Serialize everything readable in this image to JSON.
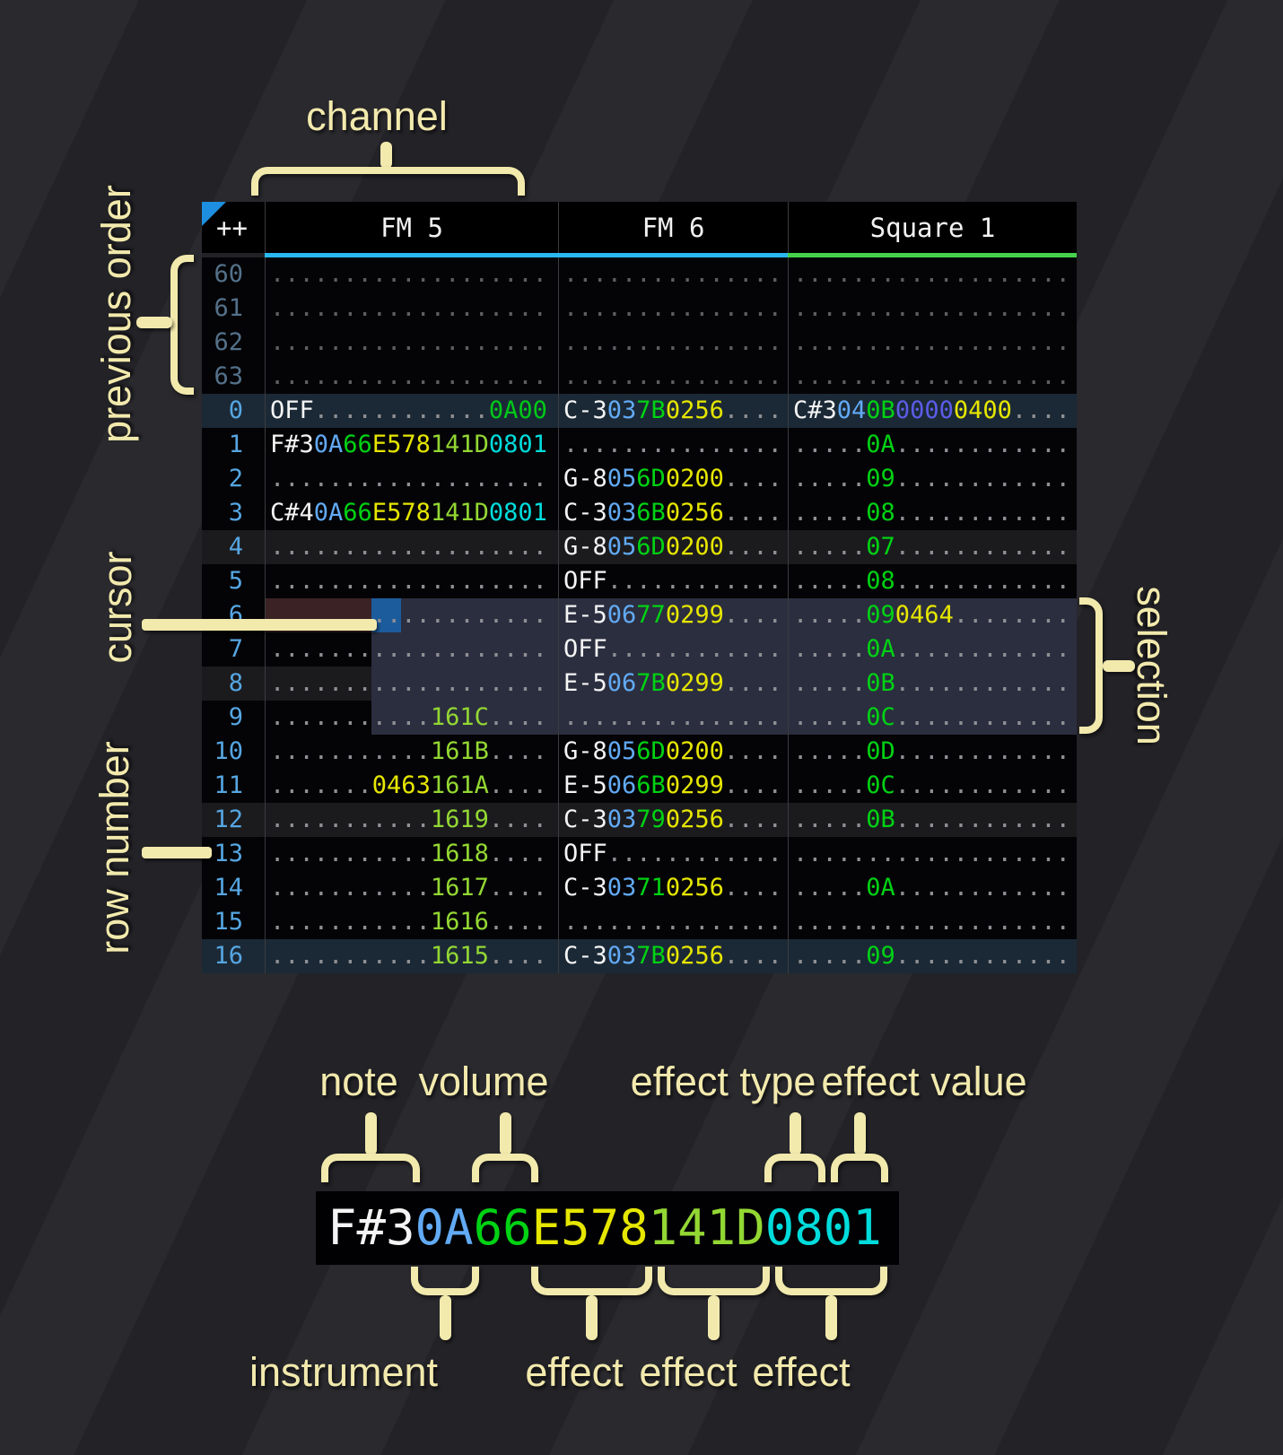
{
  "annotations": {
    "channel": "channel",
    "previous_order": "previous order",
    "cursor": "cursor",
    "row_number": "row number",
    "selection": "selection",
    "note": "note",
    "volume": "volume",
    "effect_type": "effect type",
    "effect_value": "effect value",
    "instrument": "instrument",
    "effect1": "effect",
    "effect2": "effect",
    "effect3": "effect"
  },
  "tracker": {
    "corner": "++",
    "channels": [
      {
        "name": "FM 5",
        "bar_color": "#2ab8f2"
      },
      {
        "name": "FM 6",
        "bar_color": "#2ab8f2"
      },
      {
        "name": "Square 1",
        "bar_color": "#46d14c"
      }
    ],
    "rows": [
      {
        "n": "60",
        "prev": true,
        "hl": 0,
        "c": [
          [
            [
              "...................",
              "d"
            ]
          ],
          [
            [
              "...............",
              "d"
            ]
          ],
          [
            [
              "...................",
              "d"
            ]
          ]
        ]
      },
      {
        "n": "61",
        "prev": true,
        "hl": 0,
        "c": [
          [
            [
              "...................",
              "d"
            ]
          ],
          [
            [
              "...............",
              "d"
            ]
          ],
          [
            [
              "...................",
              "d"
            ]
          ]
        ]
      },
      {
        "n": "62",
        "prev": true,
        "hl": 0,
        "c": [
          [
            [
              "...................",
              "d"
            ]
          ],
          [
            [
              "...............",
              "d"
            ]
          ],
          [
            [
              "...................",
              "d"
            ]
          ]
        ]
      },
      {
        "n": "63",
        "prev": true,
        "hl": 0,
        "c": [
          [
            [
              "...................",
              "d"
            ]
          ],
          [
            [
              "...............",
              "d"
            ]
          ],
          [
            [
              "...................",
              "d"
            ]
          ]
        ]
      },
      {
        "n": "0",
        "prev": false,
        "hl": 2,
        "c": [
          [
            [
              "OFF",
              "n"
            ],
            [
              "............",
              "d"
            ],
            [
              "0A00",
              "g"
            ]
          ],
          [
            [
              "C-3",
              "n"
            ],
            [
              "03",
              "i"
            ],
            [
              "7B",
              "v"
            ],
            [
              "0256",
              "y"
            ],
            [
              "....",
              "d"
            ]
          ],
          [
            [
              "C#3",
              "n"
            ],
            [
              "04",
              "i"
            ],
            [
              "0B",
              "v"
            ],
            [
              "0000",
              "p"
            ],
            [
              "0400",
              "y"
            ],
            [
              "....",
              "d"
            ]
          ]
        ]
      },
      {
        "n": "1",
        "prev": false,
        "hl": 0,
        "c": [
          [
            [
              "F#3",
              "n"
            ],
            [
              "0A",
              "i"
            ],
            [
              "66",
              "v"
            ],
            [
              "E578",
              "y"
            ],
            [
              "141D",
              "l"
            ],
            [
              "0801",
              "c"
            ]
          ],
          [
            [
              "...............",
              "d"
            ]
          ],
          [
            [
              ".....",
              "d"
            ],
            [
              "0A",
              "v"
            ],
            [
              "............",
              "d"
            ]
          ]
        ]
      },
      {
        "n": "2",
        "prev": false,
        "hl": 0,
        "c": [
          [
            [
              "...................",
              "d"
            ]
          ],
          [
            [
              "G-8",
              "n"
            ],
            [
              "05",
              "i"
            ],
            [
              "6D",
              "v"
            ],
            [
              "0200",
              "y"
            ],
            [
              "....",
              "d"
            ]
          ],
          [
            [
              ".....",
              "d"
            ],
            [
              "09",
              "v"
            ],
            [
              "............",
              "d"
            ]
          ]
        ]
      },
      {
        "n": "3",
        "prev": false,
        "hl": 0,
        "c": [
          [
            [
              "C#4",
              "n"
            ],
            [
              "0A",
              "i"
            ],
            [
              "66",
              "v"
            ],
            [
              "E578",
              "y"
            ],
            [
              "141D",
              "l"
            ],
            [
              "0801",
              "c"
            ]
          ],
          [
            [
              "C-3",
              "n"
            ],
            [
              "03",
              "i"
            ],
            [
              "6B",
              "v"
            ],
            [
              "0256",
              "y"
            ],
            [
              "....",
              "d"
            ]
          ],
          [
            [
              ".....",
              "d"
            ],
            [
              "08",
              "v"
            ],
            [
              "............",
              "d"
            ]
          ]
        ]
      },
      {
        "n": "4",
        "prev": false,
        "hl": 1,
        "c": [
          [
            [
              "...................",
              "d"
            ]
          ],
          [
            [
              "G-8",
              "n"
            ],
            [
              "05",
              "i"
            ],
            [
              "6D",
              "v"
            ],
            [
              "0200",
              "y"
            ],
            [
              "....",
              "d"
            ]
          ],
          [
            [
              ".....",
              "d"
            ],
            [
              "07",
              "v"
            ],
            [
              "............",
              "d"
            ]
          ]
        ]
      },
      {
        "n": "5",
        "prev": false,
        "hl": 0,
        "c": [
          [
            [
              "...................",
              "d"
            ]
          ],
          [
            [
              "OFF",
              "n"
            ],
            [
              "............",
              "d"
            ]
          ],
          [
            [
              ".....",
              "d"
            ],
            [
              "08",
              "v"
            ],
            [
              "............",
              "d"
            ]
          ]
        ]
      },
      {
        "n": "6",
        "prev": false,
        "hl": 0,
        "c": [
          [
            [
              "...................",
              "d"
            ]
          ],
          [
            [
              "E-5",
              "n"
            ],
            [
              "06",
              "i"
            ],
            [
              "77",
              "v"
            ],
            [
              "0299",
              "y"
            ],
            [
              "....",
              "d"
            ]
          ],
          [
            [
              ".....",
              "d"
            ],
            [
              "09",
              "v"
            ],
            [
              "0464",
              "y"
            ],
            [
              "........",
              "d"
            ]
          ]
        ]
      },
      {
        "n": "7",
        "prev": false,
        "hl": 0,
        "c": [
          [
            [
              "...................",
              "d"
            ]
          ],
          [
            [
              "OFF",
              "n"
            ],
            [
              "............",
              "d"
            ]
          ],
          [
            [
              ".....",
              "d"
            ],
            [
              "0A",
              "v"
            ],
            [
              "............",
              "d"
            ]
          ]
        ]
      },
      {
        "n": "8",
        "prev": false,
        "hl": 1,
        "c": [
          [
            [
              "...................",
              "d"
            ]
          ],
          [
            [
              "E-5",
              "n"
            ],
            [
              "06",
              "i"
            ],
            [
              "7B",
              "v"
            ],
            [
              "0299",
              "y"
            ],
            [
              "....",
              "d"
            ]
          ],
          [
            [
              ".....",
              "d"
            ],
            [
              "0B",
              "v"
            ],
            [
              "............",
              "d"
            ]
          ]
        ]
      },
      {
        "n": "9",
        "prev": false,
        "hl": 0,
        "c": [
          [
            [
              "...........",
              "d"
            ],
            [
              "161C",
              "l"
            ],
            [
              "....",
              "d"
            ]
          ],
          [
            [
              "...............",
              "d"
            ]
          ],
          [
            [
              ".....",
              "d"
            ],
            [
              "0C",
              "v"
            ],
            [
              "............",
              "d"
            ]
          ]
        ]
      },
      {
        "n": "10",
        "prev": false,
        "hl": 0,
        "c": [
          [
            [
              "...........",
              "d"
            ],
            [
              "161B",
              "l"
            ],
            [
              "....",
              "d"
            ]
          ],
          [
            [
              "G-8",
              "n"
            ],
            [
              "05",
              "i"
            ],
            [
              "6D",
              "v"
            ],
            [
              "0200",
              "y"
            ],
            [
              "....",
              "d"
            ]
          ],
          [
            [
              ".....",
              "d"
            ],
            [
              "0D",
              "v"
            ],
            [
              "............",
              "d"
            ]
          ]
        ]
      },
      {
        "n": "11",
        "prev": false,
        "hl": 0,
        "c": [
          [
            [
              ".......",
              "d"
            ],
            [
              "0463",
              "y"
            ],
            [
              "161A",
              "l"
            ],
            [
              "....",
              "d"
            ]
          ],
          [
            [
              "E-5",
              "n"
            ],
            [
              "06",
              "i"
            ],
            [
              "6B",
              "v"
            ],
            [
              "0299",
              "y"
            ],
            [
              "....",
              "d"
            ]
          ],
          [
            [
              ".....",
              "d"
            ],
            [
              "0C",
              "v"
            ],
            [
              "............",
              "d"
            ]
          ]
        ]
      },
      {
        "n": "12",
        "prev": false,
        "hl": 1,
        "c": [
          [
            [
              "...........",
              "d"
            ],
            [
              "1619",
              "l"
            ],
            [
              "....",
              "d"
            ]
          ],
          [
            [
              "C-3",
              "n"
            ],
            [
              "03",
              "i"
            ],
            [
              "79",
              "v"
            ],
            [
              "0256",
              "y"
            ],
            [
              "....",
              "d"
            ]
          ],
          [
            [
              ".....",
              "d"
            ],
            [
              "0B",
              "v"
            ],
            [
              "............",
              "d"
            ]
          ]
        ]
      },
      {
        "n": "13",
        "prev": false,
        "hl": 0,
        "c": [
          [
            [
              "...........",
              "d"
            ],
            [
              "1618",
              "l"
            ],
            [
              "....",
              "d"
            ]
          ],
          [
            [
              "OFF",
              "n"
            ],
            [
              "............",
              "d"
            ]
          ],
          [
            [
              "...................",
              "d"
            ]
          ]
        ]
      },
      {
        "n": "14",
        "prev": false,
        "hl": 0,
        "c": [
          [
            [
              "...........",
              "d"
            ],
            [
              "1617",
              "l"
            ],
            [
              "....",
              "d"
            ]
          ],
          [
            [
              "C-3",
              "n"
            ],
            [
              "03",
              "i"
            ],
            [
              "71",
              "v"
            ],
            [
              "0256",
              "y"
            ],
            [
              "....",
              "d"
            ]
          ],
          [
            [
              ".....",
              "d"
            ],
            [
              "0A",
              "v"
            ],
            [
              "............",
              "d"
            ]
          ]
        ]
      },
      {
        "n": "15",
        "prev": false,
        "hl": 0,
        "c": [
          [
            [
              "...........",
              "d"
            ],
            [
              "1616",
              "l"
            ],
            [
              "....",
              "d"
            ]
          ],
          [
            [
              "...............",
              "d"
            ]
          ],
          [
            [
              "...................",
              "d"
            ]
          ]
        ]
      },
      {
        "n": "16",
        "prev": false,
        "hl": 2,
        "c": [
          [
            [
              "...........",
              "d"
            ],
            [
              "1615",
              "l"
            ],
            [
              "....",
              "d"
            ]
          ],
          [
            [
              "C-3",
              "n"
            ],
            [
              "03",
              "i"
            ],
            [
              "7B",
              "v"
            ],
            [
              "0256",
              "y"
            ],
            [
              "....",
              "d"
            ]
          ],
          [
            [
              ".....",
              "d"
            ],
            [
              "09",
              "v"
            ],
            [
              "............",
              "d"
            ]
          ]
        ]
      }
    ]
  },
  "breakdown": {
    "segments": [
      [
        "F#3",
        "n"
      ],
      [
        "0A",
        "i"
      ],
      [
        "66",
        "v"
      ],
      [
        "E578",
        "y"
      ],
      [
        "141D",
        "l"
      ],
      [
        "0801",
        "c"
      ]
    ]
  },
  "colors": {
    "note": "#f4f4f4",
    "instrument": "#62aaf4",
    "volume": "#00d214",
    "fx_pitch_yellow": "#e6e600",
    "fx_chip_lime": "#93d733",
    "fx_pan_cyan": "#00dcdc",
    "fx_arp_purple": "#5c5ce8",
    "fx_vol_green": "#00c818",
    "cursor": "#1d5c9c",
    "selection": "#2b2e3f",
    "cursor_row": "#3b2224",
    "highlight1": "#1b1b1e",
    "highlight2": "#1b2936",
    "annotation": "#f2e9ad"
  }
}
